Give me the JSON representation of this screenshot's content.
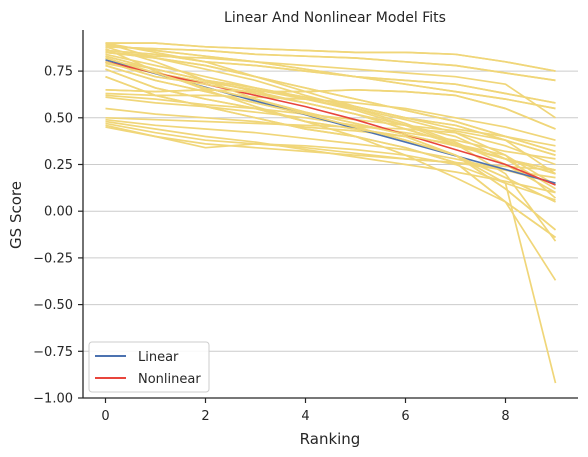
{
  "chart_data": {
    "type": "line",
    "title": "Linear And Nonlinear Model Fits",
    "xlabel": "Ranking",
    "ylabel": "GS Score",
    "xlim": [
      -0.45,
      9.45
    ],
    "ylim": [
      -1.0,
      0.97
    ],
    "xticks": [
      0,
      2,
      4,
      6,
      8
    ],
    "yticks": [
      -1.0,
      -0.75,
      -0.5,
      -0.25,
      0.0,
      0.25,
      0.5,
      0.75
    ],
    "ytick_labels": [
      "−1.00",
      "−0.75",
      "−0.50",
      "−0.25",
      "0.00",
      "0.25",
      "0.50",
      "0.75"
    ],
    "xtick_labels": [
      "0",
      "2",
      "4",
      "6",
      "8"
    ],
    "grid": "y",
    "legend": "lower-left",
    "colors": {
      "linear": "#4c72b0",
      "nonlinear": "#e8453c",
      "samples": "#f0d679",
      "grid": "#cccccc",
      "axis": "#262626"
    },
    "sample_x": [
      0,
      1,
      2,
      3,
      4,
      5,
      6,
      7,
      8,
      9
    ],
    "samples": [
      [
        0.9,
        0.9,
        0.88,
        0.87,
        0.86,
        0.85,
        0.85,
        0.84,
        0.8,
        0.75
      ],
      [
        0.88,
        0.87,
        0.86,
        0.84,
        0.83,
        0.82,
        0.8,
        0.78,
        0.74,
        0.7
      ],
      [
        0.89,
        0.86,
        0.83,
        0.8,
        0.76,
        0.72,
        0.68,
        0.64,
        0.6,
        0.55
      ],
      [
        0.86,
        0.84,
        0.8,
        0.78,
        0.75,
        0.72,
        0.7,
        0.68,
        0.63,
        0.58
      ],
      [
        0.85,
        0.82,
        0.78,
        0.72,
        0.66,
        0.6,
        0.54,
        0.48,
        0.4,
        0.32
      ],
      [
        0.83,
        0.76,
        0.7,
        0.66,
        0.61,
        0.56,
        0.5,
        0.46,
        0.38,
        0.3
      ],
      [
        0.82,
        0.74,
        0.66,
        0.6,
        0.53,
        0.47,
        0.41,
        0.35,
        0.28,
        0.22
      ],
      [
        0.8,
        0.72,
        0.68,
        0.63,
        0.58,
        0.52,
        0.44,
        0.36,
        0.28,
        0.2
      ],
      [
        0.78,
        0.7,
        0.64,
        0.58,
        0.52,
        0.45,
        0.38,
        0.3,
        0.18,
        0.05
      ],
      [
        0.76,
        0.66,
        0.6,
        0.55,
        0.48,
        0.44,
        0.4,
        0.3,
        0.12,
        -0.1
      ],
      [
        0.72,
        0.62,
        0.56,
        0.5,
        0.44,
        0.4,
        0.34,
        0.26,
        0.05,
        -0.14
      ],
      [
        0.65,
        0.64,
        0.65,
        0.64,
        0.64,
        0.65,
        0.64,
        0.62,
        0.55,
        0.44
      ],
      [
        0.63,
        0.62,
        0.62,
        0.61,
        0.6,
        0.58,
        0.55,
        0.5,
        0.45,
        0.38
      ],
      [
        0.61,
        0.58,
        0.56,
        0.53,
        0.5,
        0.46,
        0.42,
        0.38,
        0.32,
        0.28
      ],
      [
        0.5,
        0.49,
        0.48,
        0.47,
        0.46,
        0.45,
        0.44,
        0.42,
        0.35,
        0.25
      ],
      [
        0.49,
        0.46,
        0.44,
        0.42,
        0.39,
        0.36,
        0.33,
        0.28,
        0.22,
        0.15
      ],
      [
        0.48,
        0.44,
        0.4,
        0.37,
        0.33,
        0.29,
        0.25,
        0.21,
        0.16,
        0.1
      ],
      [
        0.47,
        0.42,
        0.38,
        0.36,
        0.34,
        0.31,
        0.28,
        0.26,
        0.24,
        0.22
      ],
      [
        0.46,
        0.4,
        0.36,
        0.34,
        0.32,
        0.3,
        0.28,
        0.26,
        0.22,
        0.18
      ],
      [
        0.45,
        0.4,
        0.34,
        0.36,
        0.35,
        0.33,
        0.3,
        0.25,
        0.15,
        0.06
      ],
      [
        0.88,
        0.8,
        0.7,
        0.6,
        0.52,
        0.45,
        0.38,
        0.3,
        0.15,
        -0.92
      ],
      [
        0.87,
        0.75,
        0.65,
        0.56,
        0.48,
        0.4,
        0.3,
        0.18,
        0.05,
        -0.37
      ],
      [
        0.84,
        0.78,
        0.72,
        0.66,
        0.6,
        0.54,
        0.46,
        0.36,
        0.2,
        -0.16
      ],
      [
        0.81,
        0.76,
        0.7,
        0.64,
        0.58,
        0.52,
        0.46,
        0.4,
        0.28,
        0.12
      ],
      [
        0.79,
        0.74,
        0.69,
        0.65,
        0.6,
        0.55,
        0.49,
        0.42,
        0.3,
        0.14
      ],
      [
        0.9,
        0.82,
        0.76,
        0.7,
        0.62,
        0.55,
        0.47,
        0.37,
        0.25,
        0.1
      ],
      [
        0.85,
        0.83,
        0.82,
        0.8,
        0.78,
        0.76,
        0.74,
        0.72,
        0.68,
        0.5
      ],
      [
        0.62,
        0.6,
        0.57,
        0.55,
        0.52,
        0.49,
        0.46,
        0.43,
        0.38,
        0.2
      ],
      [
        0.55,
        0.52,
        0.5,
        0.48,
        0.45,
        0.43,
        0.4,
        0.36,
        0.3,
        0.07
      ],
      [
        0.9,
        0.85,
        0.8,
        0.72,
        0.64,
        0.56,
        0.5,
        0.44,
        0.4,
        0.35
      ]
    ],
    "series": [
      {
        "name": "Linear",
        "x": [
          0,
          9
        ],
        "values": [
          0.81,
          0.15
        ]
      },
      {
        "name": "Nonlinear",
        "x": [
          0,
          1,
          2,
          3,
          4,
          5,
          6,
          7,
          8,
          9
        ],
        "values": [
          0.8,
          0.74,
          0.68,
          0.62,
          0.56,
          0.49,
          0.41,
          0.33,
          0.25,
          0.14
        ]
      }
    ]
  }
}
